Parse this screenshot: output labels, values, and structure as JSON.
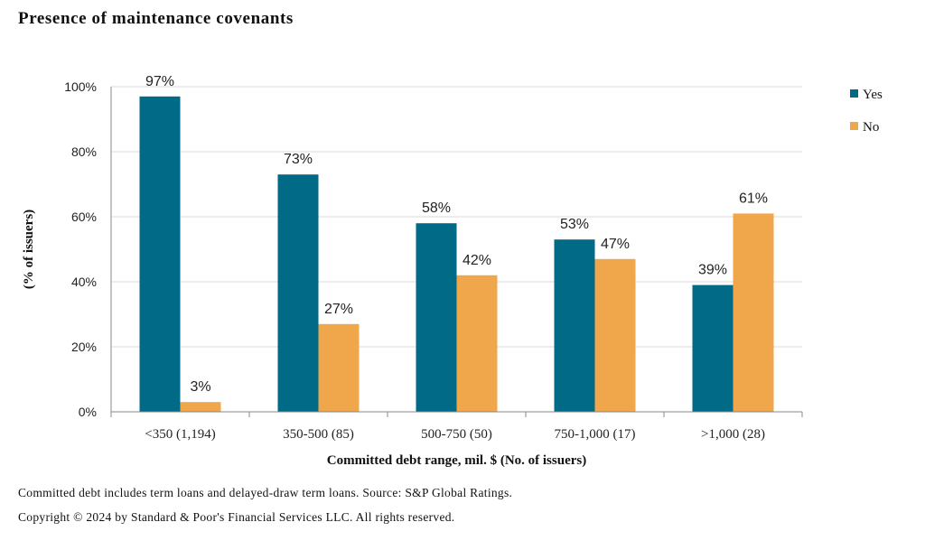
{
  "title": "Presence of maintenance covenants",
  "footnotes": [
    "Committed debt includes term loans and delayed-draw term loans. Source: S&P Global Ratings.",
    "Copyright © 2024 by Standard & Poor's Financial Services LLC. All rights reserved."
  ],
  "chart_data": {
    "type": "bar",
    "categories": [
      "<350 (1,194)",
      "350-500 (85)",
      "500-750 (50)",
      "750-1,000 (17)",
      ">1,000 (28)"
    ],
    "series": [
      {
        "name": "Yes",
        "color": "#006a87",
        "values": [
          97,
          73,
          58,
          53,
          39
        ],
        "labels": [
          "97%",
          "73%",
          "58%",
          "53%",
          "39%"
        ]
      },
      {
        "name": "No",
        "color": "#f0a64a",
        "values": [
          3,
          27,
          42,
          47,
          61
        ],
        "labels": [
          "3%",
          "27%",
          "42%",
          "47%",
          "61%"
        ]
      }
    ],
    "xlabel": "Committed debt range, mil. $ (No. of issuers)",
    "ylabel": "(% of issuers)",
    "ylim": [
      0,
      100
    ],
    "yticks": [
      0,
      20,
      40,
      60,
      80,
      100
    ],
    "ytick_labels": [
      "0%",
      "20%",
      "40%",
      "60%",
      "80%",
      "100%"
    ],
    "grid": true,
    "legend_position": "top-right"
  }
}
